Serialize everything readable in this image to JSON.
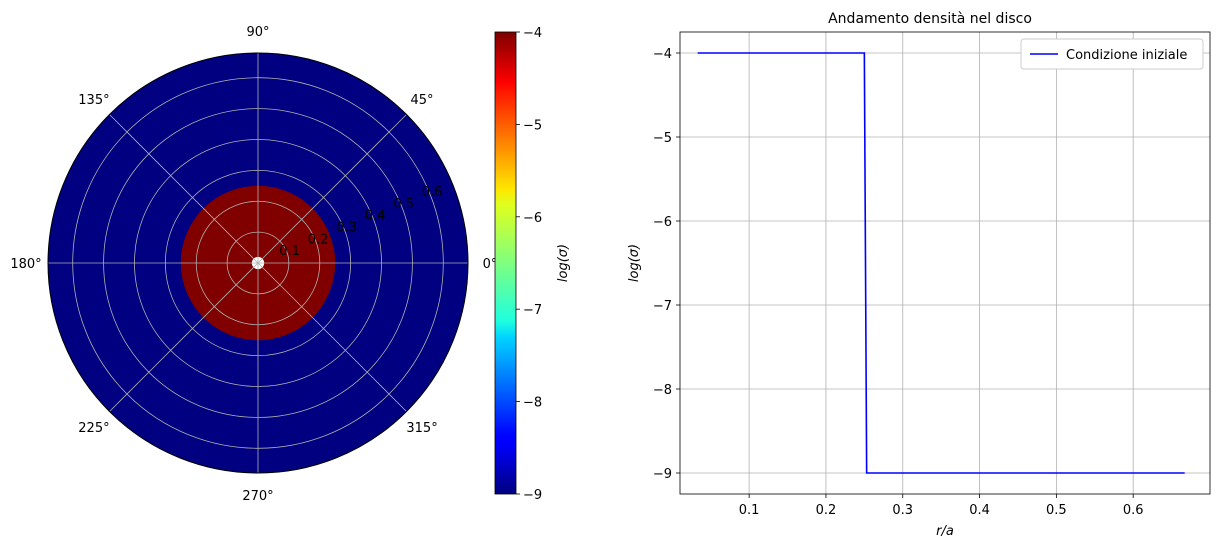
{
  "chart_data": [
    {
      "type": "heatmap",
      "projection": "polar",
      "title": "",
      "colormap": "jet",
      "r_range": [
        0.0,
        0.68
      ],
      "hole_radius": 0.02,
      "r_ticks": [
        "0.1",
        "0.2",
        "0.3",
        "0.4",
        "0.5",
        "0.6"
      ],
      "r_tick_values": [
        0.1,
        0.2,
        0.3,
        0.4,
        0.5,
        0.6
      ],
      "theta_ticks": [
        "0°",
        "45°",
        "90°",
        "135°",
        "180°",
        "225°",
        "270°",
        "315°"
      ],
      "theta_tick_values": [
        0,
        45,
        90,
        135,
        180,
        225,
        270,
        315
      ],
      "regions": [
        {
          "r_min": 0.02,
          "r_max": 0.25,
          "value": -4
        },
        {
          "r_min": 0.25,
          "r_max": 0.68,
          "value": -9
        }
      ],
      "grid": true,
      "colorbar": {
        "label": "log(σ)",
        "range": [
          -9,
          -4
        ],
        "ticks": [
          "−4",
          "−5",
          "−6",
          "−7",
          "−8",
          "−9"
        ],
        "tick_values": [
          -4,
          -5,
          -6,
          -7,
          -8,
          -9
        ]
      }
    },
    {
      "type": "line",
      "title": "Andamento densità nel disco",
      "xlabel": "r/a",
      "ylabel": "log(σ)",
      "xlim": [
        0.01,
        0.7
      ],
      "ylim": [
        -9.25,
        -3.75
      ],
      "x_ticks": [
        "0.1",
        "0.2",
        "0.3",
        "0.4",
        "0.5",
        "0.6"
      ],
      "x_tick_values": [
        0.1,
        0.2,
        0.3,
        0.4,
        0.5,
        0.6
      ],
      "y_ticks": [
        "−4",
        "−5",
        "−6",
        "−7",
        "−8",
        "−9"
      ],
      "y_tick_values": [
        -4,
        -5,
        -6,
        -7,
        -8,
        -9
      ],
      "grid": true,
      "legend_position": "top-right",
      "series": [
        {
          "name": "Condizione iniziale",
          "color": "#0000ff",
          "x": [
            0.033,
            0.25,
            0.253,
            0.667
          ],
          "y": [
            -4,
            -4,
            -9,
            -9
          ]
        }
      ]
    }
  ]
}
